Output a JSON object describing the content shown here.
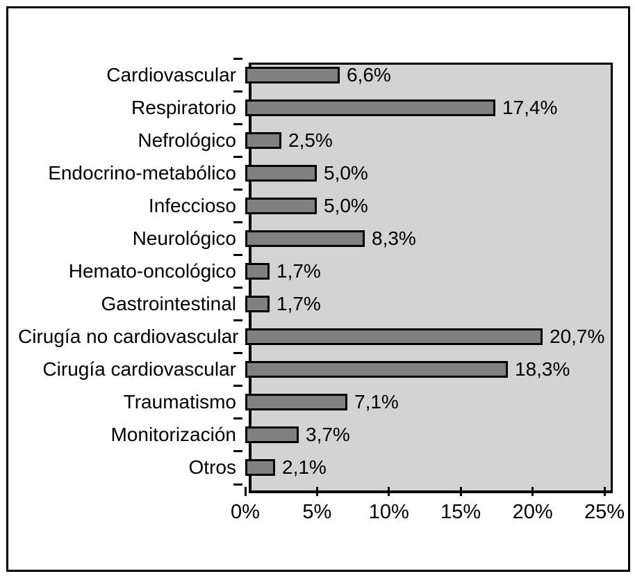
{
  "chart_data": {
    "type": "bar",
    "orientation": "horizontal",
    "title": "",
    "xlabel": "",
    "ylabel": "",
    "categories": [
      "Cardiovascular",
      "Respiratorio",
      "Nefrológico",
      "Endocrino-metabólico",
      "Infeccioso",
      "Neurológico",
      "Hemato-oncológico",
      "Gastrointestinal",
      "Cirugía no cardiovascular",
      "Cirugía cardiovascular",
      "Traumatismo",
      "Monitorización",
      "Otros"
    ],
    "values": [
      6.6,
      17.4,
      2.5,
      5.0,
      5.0,
      8.3,
      1.7,
      1.7,
      20.7,
      18.3,
      7.1,
      3.7,
      2.1
    ],
    "value_labels": [
      "6,6%",
      "17,4%",
      "2,5%",
      "5,0%",
      "5,0%",
      "8,3%",
      "1,7%",
      "1,7%",
      "20,7%",
      "18,3%",
      "7,1%",
      "3,7%",
      "2,1%"
    ],
    "xlim": [
      0,
      25
    ],
    "x_tick_values": [
      0,
      5,
      10,
      15,
      20,
      25
    ],
    "x_tick_labels": [
      "0%",
      "5%",
      "10%",
      "15%",
      "20%",
      "25%"
    ],
    "grid": false,
    "legend": false,
    "colors": {
      "bar_fill": "#808080",
      "bar_outline": "#000000",
      "plot_background": "#d3d3d3",
      "frame_border": "#000000",
      "page_background": "#ffffff",
      "text": "#000000"
    }
  }
}
